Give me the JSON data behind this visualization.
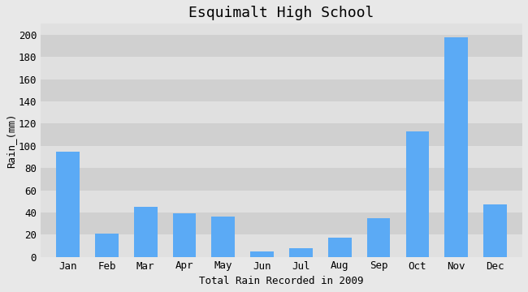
{
  "months": [
    "Jan",
    "Feb",
    "Mar",
    "Apr",
    "May",
    "Jun",
    "Jul",
    "Aug",
    "Sep",
    "Oct",
    "Nov",
    "Dec"
  ],
  "values": [
    95,
    21,
    45,
    39,
    36,
    5,
    8,
    17,
    35,
    113,
    198,
    47
  ],
  "bar_color": "#5baaf5",
  "title": "Esquimalt High School",
  "ylabel": "Rain_(mm)",
  "xlabel": "Total Rain Recorded in 2009",
  "ylim": [
    0,
    210
  ],
  "yticks": [
    0,
    20,
    40,
    60,
    80,
    100,
    120,
    140,
    160,
    180,
    200
  ],
  "background_color": "#e8e8e8",
  "band_colors": [
    "#e0e0e0",
    "#d0d0d0"
  ],
  "title_fontsize": 13,
  "label_fontsize": 9,
  "tick_fontsize": 9
}
